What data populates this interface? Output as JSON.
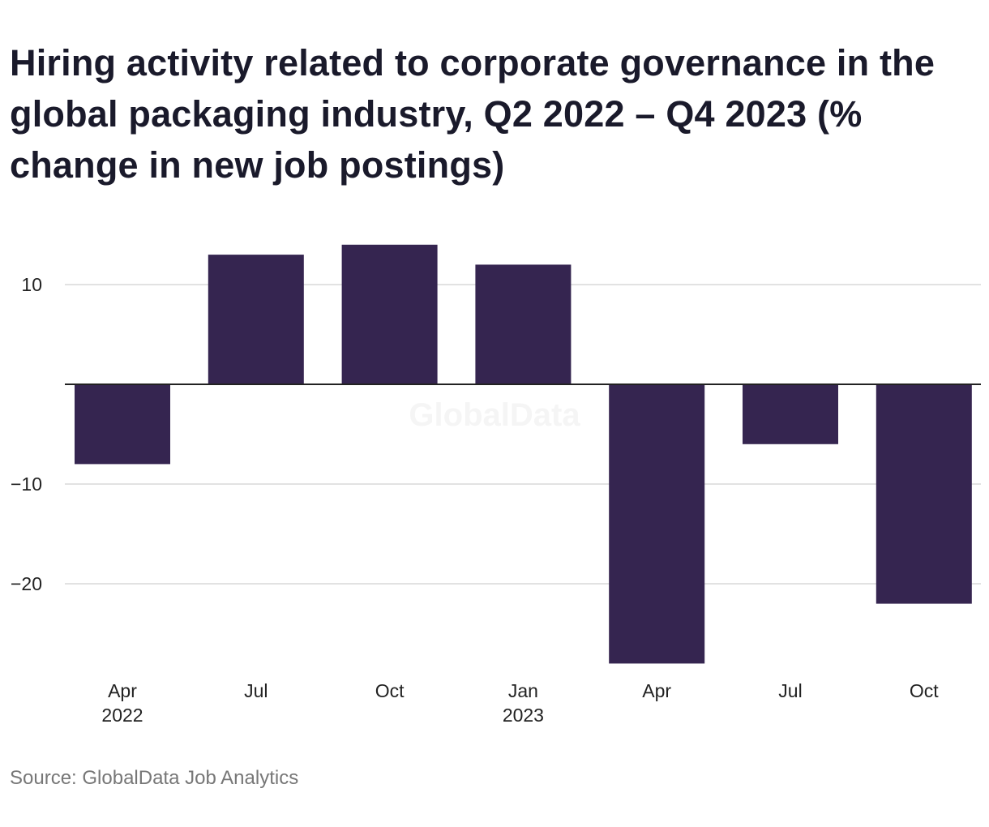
{
  "title": "Hiring activity related to corporate governance in the global packaging industry, Q2 2022 – Q4 2023 (% change in new job postings)",
  "source": "Source: GlobalData Job Analytics",
  "watermark": "GlobalData",
  "colors": {
    "bar": "#352550",
    "grid": "#d9d9d9",
    "zero_line": "#222222",
    "text": "#1a1a2b",
    "source": "#777777"
  },
  "chart_data": {
    "type": "bar",
    "categories": [
      "Apr 2022",
      "Jul 2022",
      "Oct 2022",
      "Jan 2023",
      "Apr 2023",
      "Jul 2023",
      "Oct 2023"
    ],
    "x_tick_labels": [
      [
        "Apr",
        "2022"
      ],
      [
        "Jul"
      ],
      [
        "Oct"
      ],
      [
        "Jan",
        "2023"
      ],
      [
        "Apr"
      ],
      [
        "Jul"
      ],
      [
        "Oct"
      ]
    ],
    "values": [
      -8,
      13,
      14,
      12,
      -28,
      -6,
      -22
    ],
    "y_ticks": [
      10,
      -10,
      -20
    ],
    "y_tick_labels": [
      "10",
      "−10",
      "−20"
    ],
    "ylim": [
      -28,
      14
    ],
    "grid": true,
    "legend": "none",
    "title": "Hiring activity related to corporate governance in the global packaging industry, Q2 2022 – Q4 2023 (% change in new job postings)",
    "xlabel": "",
    "ylabel": ""
  }
}
